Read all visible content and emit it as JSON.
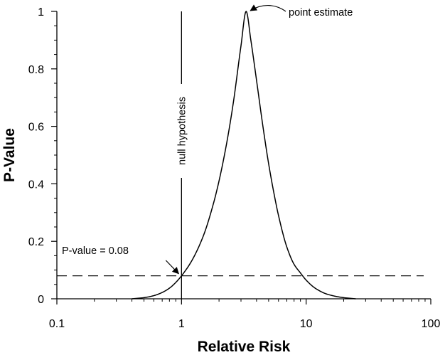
{
  "chart_data": {
    "type": "line",
    "xlabel": "Relative Risk",
    "ylabel": "P-Value",
    "x_scale": "log",
    "xlim": [
      0.1,
      100
    ],
    "ylim": [
      0,
      1
    ],
    "x_ticks": [
      0.1,
      1,
      10,
      100
    ],
    "x_tick_labels": [
      "0.1",
      "1",
      "10",
      "100"
    ],
    "y_ticks": [
      0,
      0.2,
      0.4,
      0.6,
      0.8,
      1
    ],
    "y_tick_labels": [
      "0",
      "0.2",
      "0.4",
      "0.6",
      "0.8",
      "1"
    ],
    "grid": false,
    "series": [
      {
        "style": "solid",
        "x": [
          0.4,
          0.5,
          0.6,
          0.7,
          0.8,
          0.9,
          1.0,
          1.2,
          1.5,
          1.8,
          2.0,
          2.3,
          2.6,
          3.0,
          3.3,
          3.6,
          4.0,
          4.5,
          5.0,
          5.5,
          6.0,
          7.0,
          8.0,
          9.0,
          10.0,
          12.0,
          15.0,
          20.0,
          25.0
        ],
        "y": [
          0.0,
          0.004,
          0.011,
          0.022,
          0.037,
          0.057,
          0.08,
          0.13,
          0.22,
          0.33,
          0.41,
          0.54,
          0.68,
          0.88,
          1.0,
          0.9,
          0.76,
          0.6,
          0.47,
          0.37,
          0.29,
          0.18,
          0.12,
          0.09,
          0.065,
          0.035,
          0.015,
          0.004,
          0.0
        ]
      }
    ],
    "reference_lines": [
      {
        "orientation": "horizontal",
        "value": 0.08,
        "style": "dashed",
        "label": "P-value = 0.08"
      },
      {
        "orientation": "vertical",
        "value": 1,
        "style": "solid",
        "label": "null hypothesis"
      }
    ],
    "annotations": [
      {
        "text": "point estimate",
        "target": [
          3.3,
          1.0
        ]
      },
      {
        "text": "P-value = 0.08",
        "target": [
          1.0,
          0.08
        ]
      },
      {
        "text": "null hypothesis",
        "target": [
          1.0,
          0.5
        ]
      }
    ]
  }
}
